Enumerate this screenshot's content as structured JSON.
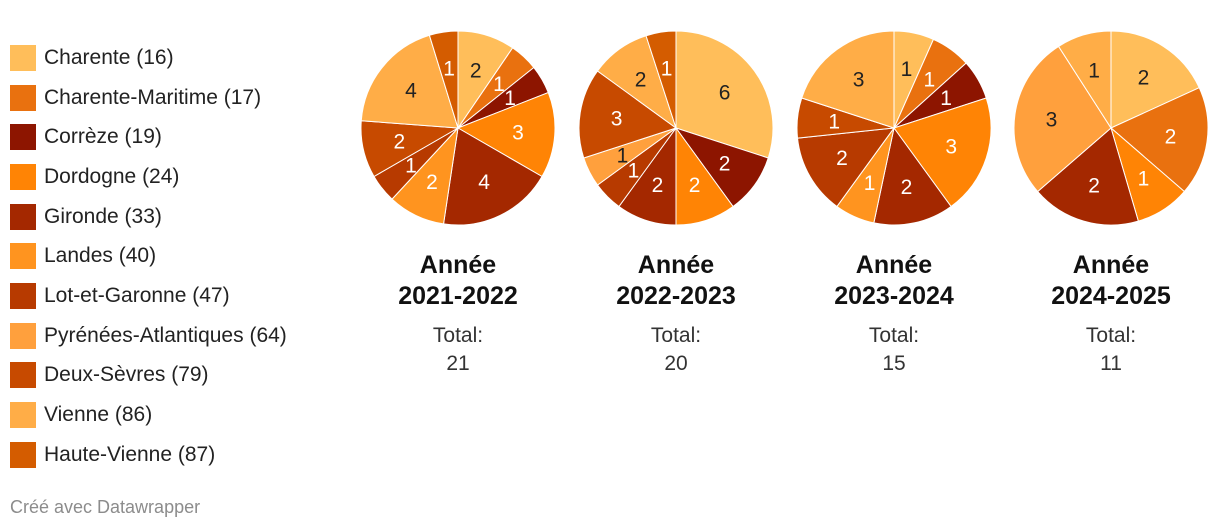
{
  "colors": {
    "Charente": "#ffbe5a",
    "Charente-Maritime": "#e9710f",
    "Corrèze": "#8d1500",
    "Dordogne": "#ff8405",
    "Gironde": "#a42800",
    "Landes": "#ff941f",
    "Lot-et-Garonne": "#b73a00",
    "Pyrénées-Atlantiques": "#ffa03d",
    "Deux-Sèvres": "#c74a00",
    "Vienne": "#ffad47",
    "Haute-Vienne": "#d45c00"
  },
  "legend": [
    {
      "key": "Charente",
      "label": "Charente (16)"
    },
    {
      "key": "Charente-Maritime",
      "label": "Charente-Maritime (17)"
    },
    {
      "key": "Corrèze",
      "label": "Corrèze (19)"
    },
    {
      "key": "Dordogne",
      "label": "Dordogne (24)"
    },
    {
      "key": "Gironde",
      "label": "Gironde (33)"
    },
    {
      "key": "Landes",
      "label": "Landes (40)"
    },
    {
      "key": "Lot-et-Garonne",
      "label": "Lot-et-Garonne (47)"
    },
    {
      "key": "Pyrénées-Atlantiques",
      "label": "Pyrénées-Atlantiques (64)"
    },
    {
      "key": "Deux-Sèvres",
      "label": "Deux-Sèvres (79)"
    },
    {
      "key": "Vienne",
      "label": "Vienne (86)"
    },
    {
      "key": "Haute-Vienne",
      "label": "Haute-Vienne (87)"
    }
  ],
  "chart_data": [
    {
      "type": "pie",
      "title_line1": "Année",
      "title_line2": "2021-2022",
      "total_label": "Total:",
      "total_value": "21",
      "categories": [
        "Charente",
        "Charente-Maritime",
        "Corrèze",
        "Dordogne",
        "Gironde",
        "Landes",
        "Lot-et-Garonne",
        "Pyrénées-Atlantiques",
        "Deux-Sèvres",
        "Vienne",
        "Haute-Vienne"
      ],
      "values": [
        2,
        1,
        1,
        3,
        4,
        2,
        1,
        0,
        2,
        4,
        1
      ]
    },
    {
      "type": "pie",
      "title_line1": "Année",
      "title_line2": "2022-2023",
      "total_label": "Total:",
      "total_value": "20",
      "categories": [
        "Charente",
        "Charente-Maritime",
        "Corrèze",
        "Dordogne",
        "Gironde",
        "Landes",
        "Lot-et-Garonne",
        "Pyrénées-Atlantiques",
        "Deux-Sèvres",
        "Vienne",
        "Haute-Vienne"
      ],
      "values": [
        6,
        0,
        2,
        2,
        2,
        0,
        1,
        1,
        3,
        2,
        1
      ]
    },
    {
      "type": "pie",
      "title_line1": "Année",
      "title_line2": "2023-2024",
      "total_label": "Total:",
      "total_value": "15",
      "categories": [
        "Charente",
        "Charente-Maritime",
        "Corrèze",
        "Dordogne",
        "Gironde",
        "Landes",
        "Lot-et-Garonne",
        "Pyrénées-Atlantiques",
        "Deux-Sèvres",
        "Vienne",
        "Haute-Vienne"
      ],
      "values": [
        1,
        1,
        1,
        3,
        2,
        1,
        2,
        0,
        1,
        3,
        0
      ]
    },
    {
      "type": "pie",
      "title_line1": "Année",
      "title_line2": "2024-2025",
      "total_label": "Total:",
      "total_value": "11",
      "categories": [
        "Charente",
        "Charente-Maritime",
        "Corrèze",
        "Dordogne",
        "Gironde",
        "Landes",
        "Lot-et-Garonne",
        "Pyrénées-Atlantiques",
        "Deux-Sèvres",
        "Vienne",
        "Haute-Vienne"
      ],
      "values": [
        2,
        2,
        0,
        1,
        2,
        0,
        0,
        3,
        0,
        1,
        0
      ]
    }
  ],
  "footer": "Créé avec Datawrapper"
}
